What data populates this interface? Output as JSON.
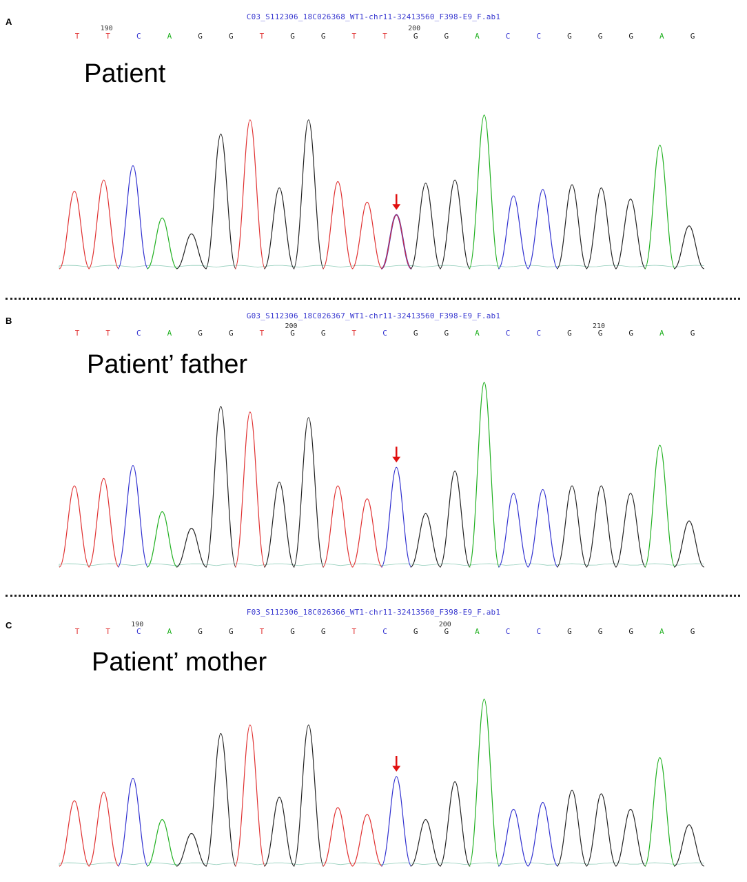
{
  "colors": {
    "T": "#e03030",
    "C": "#3030d0",
    "A": "#20b020",
    "G": "#222222",
    "arrow": "#e01010",
    "file": "#3a3ad0"
  },
  "panels": [
    {
      "letter": "A",
      "file": "C03_S112306_18C026368_WT1-chr11-32413560_F398-E9_F.ab1",
      "label": "Patient",
      "sequence": [
        "T",
        "T",
        "C",
        "A",
        "G",
        "G",
        "T",
        "G",
        "G",
        "T",
        "T",
        "G",
        "G",
        "A",
        "C",
        "C",
        "G",
        "G",
        "G",
        "A",
        "G"
      ],
      "position_markers": [
        {
          "label": "190",
          "index": 1
        },
        {
          "label": "200",
          "index": 11
        }
      ],
      "peak_heights": [
        0.49,
        0.56,
        0.65,
        0.32,
        0.22,
        0.85,
        0.94,
        0.51,
        0.94,
        0.55,
        0.42,
        0.34,
        0.54,
        0.56,
        0.97,
        0.46,
        0.5,
        0.53,
        0.51,
        0.44,
        0.78,
        0.27
      ],
      "peak_bases": [
        "T",
        "T",
        "C",
        "A",
        "G",
        "G",
        "T",
        "G",
        "G",
        "T",
        "T",
        "C",
        "G",
        "G",
        "A",
        "C",
        "C",
        "G",
        "G",
        "G",
        "A",
        "G"
      ],
      "double_peak_index": 11,
      "arrow_index": 11
    },
    {
      "letter": "B",
      "file": "G03_S112306_18C026367_WT1-chr11-32413560_F398-E9_F.ab1",
      "label": "Patient’ father",
      "sequence": [
        "T",
        "T",
        "C",
        "A",
        "G",
        "G",
        "T",
        "G",
        "G",
        "T",
        "C",
        "G",
        "G",
        "A",
        "C",
        "C",
        "G",
        "G",
        "G",
        "A",
        "G"
      ],
      "position_markers": [
        {
          "label": "200",
          "index": 7
        },
        {
          "label": "210",
          "index": 17
        }
      ],
      "peak_heights": [
        0.44,
        0.48,
        0.55,
        0.3,
        0.21,
        0.87,
        0.84,
        0.46,
        0.81,
        0.44,
        0.37,
        0.54,
        0.29,
        0.52,
        1.0,
        0.4,
        0.42,
        0.44,
        0.44,
        0.4,
        0.66,
        0.25
      ],
      "peak_bases": [
        "T",
        "T",
        "C",
        "A",
        "G",
        "G",
        "T",
        "G",
        "G",
        "T",
        "T",
        "C",
        "G",
        "G",
        "A",
        "C",
        "C",
        "G",
        "G",
        "G",
        "A",
        "G"
      ],
      "double_peak_index": -1,
      "arrow_index": 11
    },
    {
      "letter": "C",
      "file": "F03_S112306_18C026366_WT1-chr11-32413560_F398-E9_F.ab1",
      "label": "Patient’ mother",
      "sequence": [
        "T",
        "T",
        "C",
        "A",
        "G",
        "G",
        "T",
        "G",
        "G",
        "T",
        "C",
        "G",
        "G",
        "A",
        "C",
        "C",
        "G",
        "G",
        "G",
        "A",
        "G"
      ],
      "position_markers": [
        {
          "label": "190",
          "index": 2
        },
        {
          "label": "200",
          "index": 12
        }
      ],
      "peak_heights": [
        0.38,
        0.43,
        0.51,
        0.27,
        0.19,
        0.77,
        0.82,
        0.4,
        0.82,
        0.34,
        0.3,
        0.52,
        0.27,
        0.49,
        0.97,
        0.33,
        0.37,
        0.44,
        0.42,
        0.33,
        0.63,
        0.24
      ],
      "peak_bases": [
        "T",
        "T",
        "C",
        "A",
        "G",
        "G",
        "T",
        "G",
        "G",
        "T",
        "T",
        "C",
        "G",
        "G",
        "A",
        "C",
        "C",
        "G",
        "G",
        "G",
        "A",
        "G"
      ],
      "double_peak_index": -1,
      "arrow_index": 11
    }
  ]
}
